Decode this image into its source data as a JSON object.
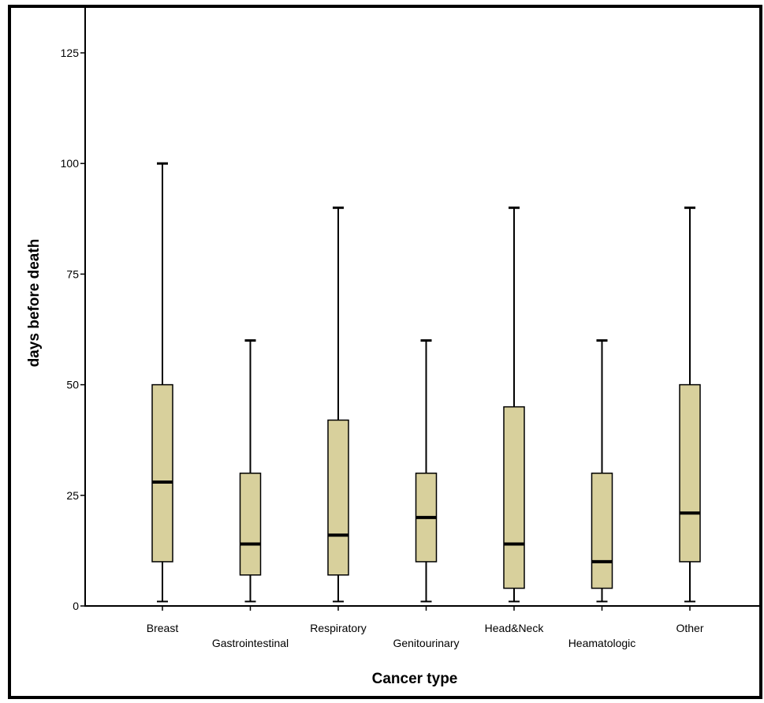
{
  "chart_data": {
    "type": "boxplot",
    "title": "",
    "xlabel": "Cancer type",
    "ylabel": "days before death",
    "ylim": [
      0,
      125
    ],
    "yticks": [
      0,
      25,
      50,
      75,
      100,
      125
    ],
    "grid": false,
    "legend": "none",
    "box_color": "#d8d09c",
    "categories": [
      "Breast",
      "Gastrointestinal",
      "Respiratory",
      "Genitourinary",
      "Head&Neck",
      "Heamatologic",
      "Other"
    ],
    "boxes": [
      {
        "min": 1,
        "q1": 10,
        "median": 28,
        "q3": 50,
        "max": 100
      },
      {
        "min": 1,
        "q1": 7,
        "median": 14,
        "q3": 30,
        "max": 60
      },
      {
        "min": 1,
        "q1": 7,
        "median": 16,
        "q3": 42,
        "max": 90
      },
      {
        "min": 1,
        "q1": 10,
        "median": 20,
        "q3": 30,
        "max": 60
      },
      {
        "min": 1,
        "q1": 4,
        "median": 14,
        "q3": 45,
        "max": 90
      },
      {
        "min": 1,
        "q1": 4,
        "median": 10,
        "q3": 30,
        "max": 60
      },
      {
        "min": 1,
        "q1": 10,
        "median": 21,
        "q3": 50,
        "max": 90
      }
    ]
  }
}
